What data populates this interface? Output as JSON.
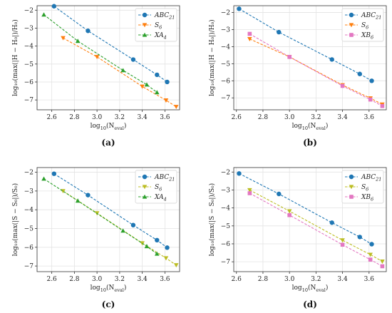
{
  "figure": {
    "captions": [
      "(a)",
      "(b)",
      "(c)",
      "(d)"
    ]
  },
  "chart_data": [
    {
      "type": "line",
      "caption": "(a)",
      "xlabel_main": "log",
      "xlabel_sub": "10",
      "xlabel_arg": "(N",
      "xlabel_argsub": "eval",
      "xlabel_close": ")",
      "ylabel": "log₁₀(max(|H − H₀|)/H₀)",
      "xlim": [
        2.47,
        3.73
      ],
      "ylim": [
        -7.55,
        -1.75
      ],
      "xticks": [
        2.6,
        2.8,
        3.0,
        3.2,
        3.4,
        3.6
      ],
      "yticks": [
        -2,
        -3,
        -4,
        -5,
        -6,
        -7
      ],
      "xtick_labels": [
        "2.6",
        "2.8",
        "3.0",
        "3.2",
        "3.4",
        "3.6"
      ],
      "ytick_labels": [
        "−2",
        "−3",
        "−4",
        "−5",
        "−6",
        "−7"
      ],
      "legend_position": "top-right",
      "series": [
        {
          "name": "ABC",
          "sub": "21",
          "color": "#1f77b4",
          "marker": "circle",
          "x": [
            2.62,
            2.92,
            3.32,
            3.53,
            3.62
          ],
          "y": [
            -1.78,
            -3.15,
            -4.75,
            -5.6,
            -6.0
          ]
        },
        {
          "name": "S",
          "sub": "6",
          "color": "#ff7f0e",
          "marker": "triangle-down",
          "x": [
            2.7,
            3.0,
            3.4,
            3.61,
            3.7
          ],
          "y": [
            -3.55,
            -4.6,
            -6.25,
            -7.02,
            -7.38
          ]
        },
        {
          "name": "XA",
          "sub": "4",
          "color": "#2ca02c",
          "marker": "triangle-up",
          "x": [
            2.53,
            2.83,
            3.23,
            3.44,
            3.53
          ],
          "y": [
            -2.25,
            -3.72,
            -5.35,
            -6.15,
            -6.58
          ]
        }
      ]
    },
    {
      "type": "line",
      "caption": "(b)",
      "xlabel_main": "log",
      "xlabel_sub": "10",
      "xlabel_arg": "(N",
      "xlabel_argsub": "eval",
      "xlabel_close": ")",
      "ylabel": "log₁₀(max(|H − H₀|)/H₀)",
      "xlim": [
        2.58,
        3.73
      ],
      "ylim": [
        -7.7,
        -1.6
      ],
      "xticks": [
        2.6,
        2.8,
        3.0,
        3.2,
        3.4,
        3.6
      ],
      "yticks": [
        -2,
        -3,
        -4,
        -5,
        -6,
        -7
      ],
      "xtick_labels": [
        "2.6",
        "2.8",
        "3.0",
        "3.2",
        "3.4",
        "3.6"
      ],
      "ytick_labels": [
        "−2",
        "−3",
        "−4",
        "−5",
        "−6",
        "−7"
      ],
      "legend_position": "top-right",
      "series": [
        {
          "name": "ABC",
          "sub": "21",
          "color": "#1f77b4",
          "marker": "circle",
          "x": [
            2.62,
            2.92,
            3.32,
            3.53,
            3.62
          ],
          "y": [
            -1.78,
            -3.15,
            -4.75,
            -5.6,
            -6.0
          ]
        },
        {
          "name": "S",
          "sub": "6",
          "color": "#ff7f0e",
          "marker": "triangle-down",
          "x": [
            2.7,
            3.0,
            3.4,
            3.61,
            3.7
          ],
          "y": [
            -3.55,
            -4.6,
            -6.25,
            -7.02,
            -7.38
          ]
        },
        {
          "name": "XB",
          "sub": "6",
          "color": "#e377c2",
          "marker": "square",
          "x": [
            2.7,
            3.0,
            3.4,
            3.61,
            3.7
          ],
          "y": [
            -3.25,
            -4.6,
            -6.3,
            -7.1,
            -7.48
          ]
        }
      ]
    },
    {
      "type": "line",
      "caption": "(c)",
      "xlabel_main": "log",
      "xlabel_sub": "10",
      "xlabel_arg": "(N",
      "xlabel_argsub": "eval",
      "xlabel_close": ")",
      "ylabel": "log₁₀(max(|S − S₀|)/S₀)",
      "xlim": [
        2.47,
        3.73
      ],
      "ylim": [
        -7.3,
        -1.75
      ],
      "xticks": [
        2.6,
        2.8,
        3.0,
        3.2,
        3.4,
        3.6
      ],
      "yticks": [
        -2,
        -3,
        -4,
        -5,
        -6,
        -7
      ],
      "xtick_labels": [
        "2.6",
        "2.8",
        "3.0",
        "3.2",
        "3.4",
        "3.6"
      ],
      "ytick_labels": [
        "−2",
        "−3",
        "−4",
        "−5",
        "−6",
        "−7"
      ],
      "legend_position": "top-right",
      "series": [
        {
          "name": "ABC",
          "sub": "21",
          "color": "#1f77b4",
          "marker": "circle",
          "x": [
            2.62,
            2.92,
            3.32,
            3.53,
            3.62
          ],
          "y": [
            -2.08,
            -3.22,
            -4.82,
            -5.62,
            -6.02
          ]
        },
        {
          "name": "S",
          "sub": "6",
          "color": "#bcbd22",
          "marker": "triangle-down",
          "x": [
            2.7,
            3.0,
            3.4,
            3.61,
            3.7
          ],
          "y": [
            -3.0,
            -4.18,
            -5.78,
            -6.58,
            -6.95
          ]
        },
        {
          "name": "XA",
          "sub": "4",
          "color": "#2ca02c",
          "marker": "triangle-up",
          "x": [
            2.53,
            2.83,
            3.23,
            3.44,
            3.53
          ],
          "y": [
            -2.35,
            -3.52,
            -5.12,
            -5.95,
            -6.35
          ]
        }
      ]
    },
    {
      "type": "line",
      "caption": "(d)",
      "xlabel_main": "log",
      "xlabel_sub": "10",
      "xlabel_arg": "(N",
      "xlabel_argsub": "eval",
      "xlabel_close": ")",
      "ylabel": "log₁₀(max(|S − S₀|)/S₀)",
      "xlim": [
        2.58,
        3.73
      ],
      "ylim": [
        -7.55,
        -1.75
      ],
      "xticks": [
        2.6,
        2.8,
        3.0,
        3.2,
        3.4,
        3.6
      ],
      "yticks": [
        -2,
        -3,
        -4,
        -5,
        -6,
        -7
      ],
      "xtick_labels": [
        "2.6",
        "2.8",
        "3.0",
        "3.2",
        "3.4",
        "3.6"
      ],
      "ytick_labels": [
        "−2",
        "−3",
        "−4",
        "−5",
        "−6",
        "−7"
      ],
      "legend_position": "top-right",
      "series": [
        {
          "name": "ABC",
          "sub": "21",
          "color": "#1f77b4",
          "marker": "circle",
          "x": [
            2.62,
            2.92,
            3.32,
            3.53,
            3.62
          ],
          "y": [
            -2.08,
            -3.22,
            -4.82,
            -5.62,
            -6.02
          ]
        },
        {
          "name": "S",
          "sub": "6",
          "color": "#bcbd22",
          "marker": "triangle-down",
          "x": [
            2.7,
            3.0,
            3.4,
            3.61,
            3.7
          ],
          "y": [
            -3.0,
            -4.18,
            -5.8,
            -6.6,
            -6.98
          ]
        },
        {
          "name": "XB",
          "sub": "6",
          "color": "#e377c2",
          "marker": "square",
          "x": [
            2.7,
            3.0,
            3.4,
            3.61,
            3.7
          ],
          "y": [
            -3.18,
            -4.4,
            -6.05,
            -6.88,
            -7.25
          ]
        }
      ]
    }
  ]
}
